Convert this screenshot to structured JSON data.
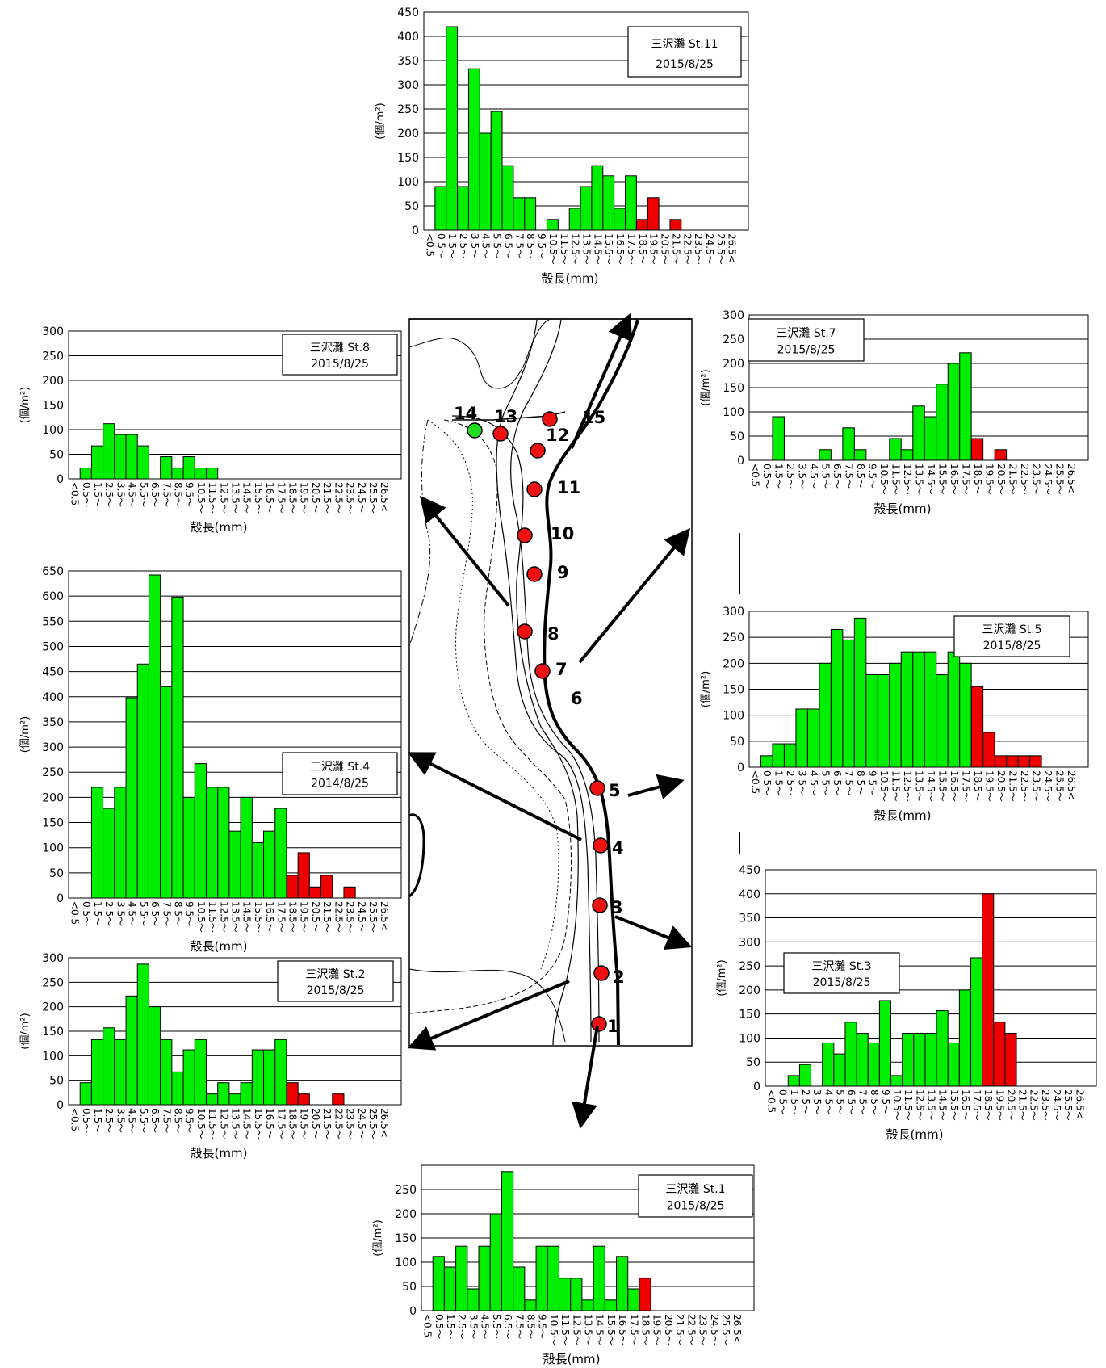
{
  "chart_data": [
    {
      "id": "st11",
      "type": "bar",
      "title": "三沢灘 St.11",
      "subtitle": "2015/8/25",
      "ylabel": "(個/m²)",
      "xlabel": "殻長(mm)",
      "ylim": [
        0,
        450
      ],
      "yticks": [
        0,
        50,
        100,
        150,
        200,
        250,
        300,
        350,
        400,
        450
      ],
      "red_from_index": 19,
      "values": [
        0,
        90,
        420,
        90,
        333,
        200,
        245,
        133,
        67,
        67,
        0,
        22,
        0,
        45,
        90,
        133,
        112,
        45,
        112,
        22,
        67,
        0,
        22,
        0,
        0,
        0,
        0,
        0,
        0
      ]
    },
    {
      "id": "st8",
      "type": "bar",
      "title": "三沢灘 St.8",
      "subtitle": "2015/8/25",
      "ylabel": "(個/m²)",
      "xlabel": "殻長(mm)",
      "ylim": [
        0,
        300
      ],
      "yticks": [
        0,
        50,
        100,
        150,
        200,
        250,
        300
      ],
      "red_from_index": 19,
      "values": [
        0,
        22,
        67,
        112,
        90,
        90,
        67,
        0,
        45,
        22,
        45,
        22,
        22,
        0,
        0,
        0,
        0,
        0,
        0,
        0,
        0,
        0,
        0,
        0,
        0,
        0,
        0,
        0,
        0
      ]
    },
    {
      "id": "st7",
      "type": "bar",
      "title": "三沢灘 St.7",
      "subtitle": "2015/8/25",
      "ylabel": "(個/m²)",
      "xlabel": "殻長(mm)",
      "ylim": [
        0,
        300
      ],
      "yticks": [
        0,
        50,
        100,
        150,
        200,
        250,
        300
      ],
      "red_from_index": 19,
      "values": [
        0,
        0,
        90,
        0,
        0,
        0,
        22,
        0,
        67,
        22,
        0,
        0,
        45,
        22,
        112,
        90,
        157,
        200,
        222,
        45,
        0,
        22,
        0,
        0,
        0,
        0,
        0,
        0,
        0
      ]
    },
    {
      "id": "st4",
      "type": "bar",
      "title": "三沢灘 St.4",
      "subtitle": "2014/8/25",
      "ylabel": "(個/m²)",
      "xlabel": "殻長(mm)",
      "ylim": [
        0,
        650
      ],
      "yticks": [
        0,
        50,
        100,
        150,
        200,
        250,
        300,
        350,
        400,
        450,
        500,
        550,
        600,
        650
      ],
      "red_from_index": 19,
      "values": [
        0,
        0,
        220,
        178,
        220,
        398,
        465,
        642,
        420,
        598,
        200,
        267,
        220,
        220,
        133,
        200,
        110,
        133,
        178,
        45,
        90,
        22,
        45,
        0,
        22,
        0,
        0,
        0,
        0
      ]
    },
    {
      "id": "st5",
      "type": "bar",
      "title": "三沢灘 St.5",
      "subtitle": "2015/8/25",
      "ylabel": "(個/m²)",
      "xlabel": "殻長(mm)",
      "ylim": [
        0,
        300
      ],
      "yticks": [
        0,
        50,
        100,
        150,
        200,
        250,
        300
      ],
      "red_from_index": 19,
      "values": [
        0,
        22,
        45,
        45,
        112,
        112,
        200,
        265,
        245,
        287,
        178,
        178,
        200,
        222,
        222,
        222,
        178,
        222,
        200,
        155,
        67,
        22,
        22,
        22,
        22,
        0,
        0,
        0,
        0
      ]
    },
    {
      "id": "st2",
      "type": "bar",
      "title": "三沢灘 St.2",
      "subtitle": "2015/8/25",
      "ylabel": "(個/m²)",
      "xlabel": "殻長(mm)",
      "ylim": [
        0,
        300
      ],
      "yticks": [
        0,
        50,
        100,
        150,
        200,
        250,
        300
      ],
      "red_from_index": 19,
      "values": [
        0,
        45,
        133,
        157,
        133,
        222,
        287,
        200,
        133,
        67,
        112,
        133,
        22,
        45,
        22,
        45,
        112,
        112,
        133,
        45,
        22,
        0,
        0,
        22,
        0,
        0,
        0,
        0,
        0
      ]
    },
    {
      "id": "st3",
      "type": "bar",
      "title": "三沢灘 St.3",
      "subtitle": "2015/8/25",
      "ylabel": "(個/m²)",
      "xlabel": "殻長(mm)",
      "ylim": [
        0,
        450
      ],
      "yticks": [
        0,
        50,
        100,
        150,
        200,
        250,
        300,
        350,
        400,
        450
      ],
      "red_from_index": 19,
      "values": [
        0,
        0,
        22,
        45,
        0,
        90,
        67,
        133,
        110,
        90,
        178,
        22,
        110,
        110,
        110,
        157,
        90,
        200,
        267,
        400,
        133,
        110,
        0,
        0,
        0,
        0,
        0,
        0,
        0
      ]
    },
    {
      "id": "st1",
      "type": "bar",
      "title": "三沢灘 St.1",
      "subtitle": "2015/8/25",
      "ylabel": "(個/m²)",
      "xlabel": "殻長(mm)",
      "ylim": [
        0,
        300
      ],
      "yticks": [
        0,
        50,
        100,
        150,
        200,
        250
      ],
      "red_from_index": 19,
      "values": [
        0,
        112,
        90,
        133,
        45,
        133,
        200,
        287,
        90,
        22,
        133,
        133,
        67,
        67,
        22,
        133,
        22,
        112,
        45,
        67,
        0,
        0,
        0,
        0,
        0,
        0,
        0,
        0,
        0
      ]
    }
  ],
  "categories": [
    "<0.5",
    "0.5～",
    "1.5～",
    "2.5～",
    "3.5～",
    "4.5～",
    "5.5～",
    "6.5～",
    "7.5～",
    "8.5～",
    "9.5～",
    "10.5～",
    "11.5～",
    "12.5～",
    "13.5～",
    "14.5～",
    "15.5～",
    "16.5～",
    "17.5～",
    "18.5～",
    "19.5～",
    "20.5～",
    "21.5～",
    "22.5～",
    "23.5～",
    "24.5～",
    "25.5～",
    "26.5<",
    ""
  ],
  "colors": {
    "green": "#00ee00",
    "red": "#ee0000",
    "station_red": "#ee1111",
    "station_green": "#22dd22"
  },
  "map": {
    "stations": [
      {
        "label": "1",
        "color": "red"
      },
      {
        "label": "2",
        "color": "red"
      },
      {
        "label": "3",
        "color": "red"
      },
      {
        "label": "4",
        "color": "red"
      },
      {
        "label": "5",
        "color": "red"
      },
      {
        "label": "6",
        "color": "red"
      },
      {
        "label": "7",
        "color": "red"
      },
      {
        "label": "8",
        "color": "red"
      },
      {
        "label": "9",
        "color": "red"
      },
      {
        "label": "10",
        "color": "red"
      },
      {
        "label": "11",
        "color": "red"
      },
      {
        "label": "12",
        "color": "red"
      },
      {
        "label": "13",
        "color": "red"
      },
      {
        "label": "14",
        "color": "green"
      },
      {
        "label": "15",
        "color": "red"
      }
    ]
  }
}
